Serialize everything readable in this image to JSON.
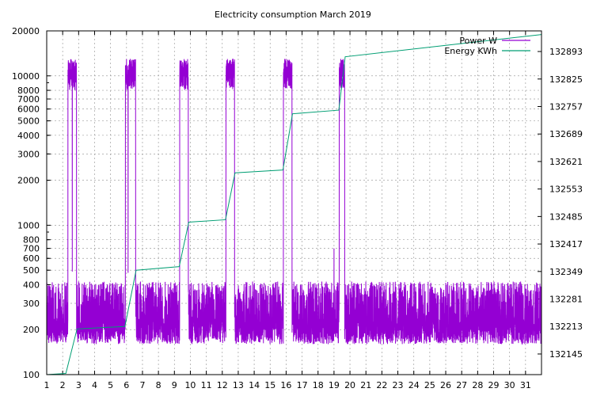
{
  "chart_data": {
    "type": "line",
    "title": "Electricity consumption March 2019",
    "x_ticks": [
      "1",
      "2",
      "3",
      "4",
      "5",
      "6",
      "7",
      "8",
      "9",
      "10",
      "11",
      "12",
      "13",
      "14",
      "15",
      "16",
      "17",
      "18",
      "19",
      "20",
      "21",
      "22",
      "23",
      "24",
      "25",
      "26",
      "27",
      "28",
      "29",
      "30",
      "31"
    ],
    "xlim": [
      1,
      32
    ],
    "y_left": {
      "scale": "log",
      "range": [
        100,
        20000
      ],
      "ticks": [
        100,
        200,
        300,
        400,
        500,
        600,
        700,
        800,
        1000,
        2000,
        3000,
        4000,
        5000,
        6000,
        7000,
        8000,
        10000,
        20000
      ]
    },
    "y_right": {
      "scale": "linear",
      "range": [
        132094,
        132944
      ],
      "ticks": [
        132145,
        132213,
        132281,
        132349,
        132417,
        132485,
        132553,
        132621,
        132689,
        132757,
        132825,
        132893
      ]
    },
    "grid": true,
    "legend_position": "top-right",
    "series": [
      {
        "name": "Power W",
        "axis": "left",
        "color": "#9400d3",
        "baseline_range_W": [
          160,
          420
        ],
        "high_blocks": [
          {
            "start": 2.3,
            "end": 2.9,
            "low_W": 8000,
            "high_W": 13000
          },
          {
            "start": 5.9,
            "end": 6.6,
            "low_W": 8000,
            "high_W": 13000
          },
          {
            "start": 9.3,
            "end": 9.9,
            "low_W": 8000,
            "high_W": 13000
          },
          {
            "start": 12.2,
            "end": 12.8,
            "low_W": 8000,
            "high_W": 13000
          },
          {
            "start": 15.8,
            "end": 16.4,
            "low_W": 8000,
            "high_W": 13000
          },
          {
            "start": 19.3,
            "end": 19.7,
            "low_W": 8000,
            "high_W": 13000
          }
        ],
        "notable_spikes": [
          {
            "x": 2.6,
            "W": 490
          },
          {
            "x": 6.1,
            "W": 480
          },
          {
            "x": 19.0,
            "W": 700
          }
        ]
      },
      {
        "name": "Energy KWh",
        "axis": "right",
        "color": "#009e73",
        "points": [
          [
            1.0,
            132094
          ],
          [
            2.2,
            132097
          ],
          [
            2.9,
            132207
          ],
          [
            5.9,
            132213
          ],
          [
            6.6,
            132352
          ],
          [
            9.3,
            132361
          ],
          [
            9.9,
            132471
          ],
          [
            12.2,
            132477
          ],
          [
            12.8,
            132593
          ],
          [
            15.8,
            132600
          ],
          [
            16.4,
            132739
          ],
          [
            19.3,
            132748
          ],
          [
            19.7,
            132880
          ],
          [
            32.0,
            132935
          ]
        ]
      }
    ]
  }
}
